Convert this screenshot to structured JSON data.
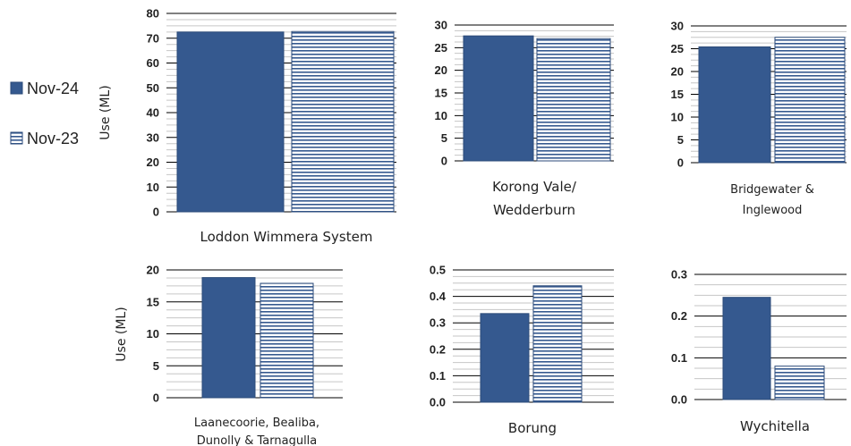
{
  "legend": {
    "items": [
      {
        "name": "Nov-24",
        "color": "#35598f",
        "pattern": "solid"
      },
      {
        "name": "Nov-23",
        "color": "#35598f",
        "pattern": "horizontal-stripes"
      }
    ]
  },
  "colors": {
    "bar": "#35598f",
    "bar_edge": "#2b4a78",
    "hatch": "#35598f",
    "grid": "#000000"
  },
  "chart_data": [
    {
      "type": "bar",
      "category_label": [
        "Loddon Wimmera System"
      ],
      "ylabel": "Use  (ML)",
      "ylim": [
        0,
        80
      ],
      "yticks": [
        "0",
        "10",
        "20",
        "30",
        "40",
        "50",
        "60",
        "70",
        "80"
      ],
      "series": [
        {
          "name": "Nov-24",
          "values": [
            72.5
          ]
        },
        {
          "name": "Nov-23",
          "values": [
            72.7
          ]
        }
      ]
    },
    {
      "type": "bar",
      "category_label": [
        "Korong Vale/",
        "Wedderburn"
      ],
      "ylabel": "",
      "ylim": [
        0,
        30
      ],
      "yticks": [
        "0",
        "5",
        "10",
        "15",
        "20",
        "25",
        "30"
      ],
      "series": [
        {
          "name": "Nov-24",
          "values": [
            27.6
          ]
        },
        {
          "name": "Nov-23",
          "values": [
            27.0
          ]
        }
      ]
    },
    {
      "type": "bar",
      "category_label": [
        "Bridgewater &",
        "Inglewood"
      ],
      "ylabel": "",
      "ylim": [
        0,
        30
      ],
      "yticks": [
        "0",
        "5",
        "10",
        "15",
        "20",
        "25",
        "30"
      ],
      "series": [
        {
          "name": "Nov-24",
          "values": [
            25.4
          ]
        },
        {
          "name": "Nov-23",
          "values": [
            27.5
          ]
        }
      ]
    },
    {
      "type": "bar",
      "category_label": [
        "Laanecoorie, Bealiba,",
        "Dunolly & Tarnagulla"
      ],
      "ylabel": "Use  (ML)",
      "ylim": [
        0,
        20
      ],
      "yticks": [
        "0",
        "5",
        "10",
        "15",
        "20"
      ],
      "series": [
        {
          "name": "Nov-24",
          "values": [
            18.8
          ]
        },
        {
          "name": "Nov-23",
          "values": [
            17.9
          ]
        }
      ]
    },
    {
      "type": "bar",
      "category_label": [
        "Borung"
      ],
      "ylabel": "",
      "ylim": [
        0,
        0.5
      ],
      "yticks": [
        "0.0",
        "0.1",
        "0.2",
        "0.3",
        "0.4",
        "0.5"
      ],
      "series": [
        {
          "name": "Nov-24",
          "values": [
            0.335
          ]
        },
        {
          "name": "Nov-23",
          "values": [
            0.44
          ]
        }
      ]
    },
    {
      "type": "bar",
      "category_label": [
        "Wychitella"
      ],
      "ylabel": "",
      "ylim": [
        0,
        0.3
      ],
      "yticks": [
        "0.0",
        "0.1",
        "0.2",
        "0.3"
      ],
      "series": [
        {
          "name": "Nov-24",
          "values": [
            0.245
          ]
        },
        {
          "name": "Nov-23",
          "values": [
            0.08
          ]
        }
      ]
    }
  ]
}
